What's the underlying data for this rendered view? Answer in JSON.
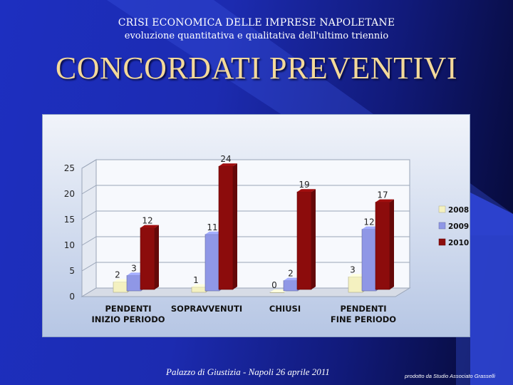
{
  "slide": {
    "header_line1": "CRISI ECONOMICA DELLE IMPRESE NAPOLETANE",
    "header_line2": "evoluzione quantitativa e qualitativa dell'ultimo triennio",
    "title": "CONCORDATI PREVENTIVI",
    "footer": "Palazzo di Giustizia - Napoli 26 aprile 2011",
    "credit": "prodotto da Studio Associato Grasselli",
    "colors": {
      "background": "#1c2bb0",
      "title": "#f3d99a",
      "text": "#ffffff"
    }
  },
  "chart_data": {
    "type": "bar",
    "title": "",
    "xlabel": "",
    "ylabel": "",
    "ylim": [
      0,
      25
    ],
    "yticks": [
      0,
      5,
      10,
      15,
      20,
      25
    ],
    "categories": [
      [
        "PENDENTI",
        "INIZIO PERIODO"
      ],
      [
        "SOPRAVVENUTI"
      ],
      [
        "CHIUSI"
      ],
      [
        "PENDENTI",
        "FINE PERIODO"
      ]
    ],
    "series": [
      {
        "name": "2008",
        "values": [
          2,
          1,
          0,
          3
        ],
        "color": "#f4f1c0"
      },
      {
        "name": "2009",
        "values": [
          3,
          11,
          2,
          12
        ],
        "color": "#8f97e6"
      },
      {
        "name": "2010",
        "values": [
          12,
          24,
          19,
          17
        ],
        "color": "#8c0c0c"
      }
    ],
    "grid": true,
    "legend_position": "right",
    "data_labels": true,
    "style": "3d-columns"
  }
}
